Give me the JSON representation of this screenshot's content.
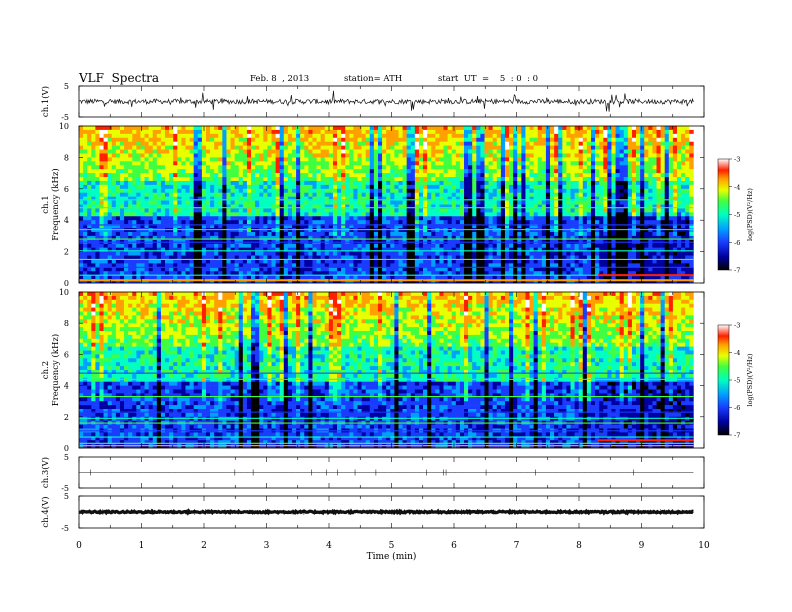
{
  "header": {
    "title": "VLF  Spectra",
    "date": "Feb. 8  , 2013",
    "station": "station= ATH",
    "start": "start  UT  =    5  : 0  : 0"
  },
  "colors": {
    "background": "#ffffff",
    "axis": "#000000",
    "trace": "#111111",
    "colormap": [
      "#000000",
      "#0000a0",
      "#1a3cff",
      "#00a0ff",
      "#00ffc0",
      "#40ff40",
      "#e8ff00",
      "#ffa000",
      "#ff2000",
      "#ffffff"
    ]
  },
  "chart_data": [
    {
      "type": "line",
      "id": "ch1",
      "ylabel": "ch.1(V)",
      "ylim": [
        -5,
        5
      ],
      "ytick_labels": [
        "5",
        "-5"
      ],
      "x_range": [
        0,
        9.83
      ],
      "baseline_y": 0.0,
      "noise_amplitude": 0.8
    },
    {
      "type": "heatmap",
      "id": "ch1_spec",
      "ylabel": "ch.1\nFrequency  (kHz)",
      "ylim": [
        0,
        10
      ],
      "ytick_labels": [
        "0",
        "2",
        "4",
        "6",
        "8",
        "10"
      ],
      "xlim": [
        0,
        10
      ],
      "data_x_end": 9.83,
      "colorbar": {
        "label": "log(PSD)(V²/Hz)",
        "range": [
          -7,
          -3
        ],
        "tick_labels": [
          "-3",
          "-4",
          "-5",
          "-6",
          "-7"
        ]
      },
      "tones_khz": [
        0.2,
        0.5,
        1.0,
        1.5,
        2.05,
        2.6,
        2.8,
        3.4,
        3.7,
        4.8,
        5.3
      ],
      "change_at_min": 8.3
    },
    {
      "type": "heatmap",
      "id": "ch2_spec",
      "ylabel": "ch.2\nFrequency  (kHz)",
      "ylim": [
        0,
        10
      ],
      "ytick_labels": [
        "0",
        "2",
        "4",
        "6",
        "8",
        "10"
      ],
      "xlim": [
        0,
        10
      ],
      "data_x_end": 9.83,
      "colorbar": {
        "label": "log(PSD)(V²/Hz)",
        "range": [
          -7,
          -3
        ],
        "tick_labels": [
          "-3",
          "-4",
          "-5",
          "-6",
          "-7"
        ]
      },
      "tones_khz": [
        0.3,
        0.7,
        1.1,
        1.6,
        1.9,
        2.3,
        3.3,
        4.4,
        4.8
      ],
      "change_at_min": 8.3
    },
    {
      "type": "line",
      "id": "ch3",
      "ylabel": "ch.3(V)",
      "ylim": [
        -5,
        5
      ],
      "ytick_labels": [
        "5",
        "-5"
      ],
      "x_range": [
        0,
        9.83
      ],
      "baseline_y": 0.0,
      "noise_amplitude": 0.05
    },
    {
      "type": "line",
      "id": "ch4",
      "ylabel": "ch.4(V)",
      "ylim": [
        -5,
        5
      ],
      "ytick_labels": [
        "5",
        "-5"
      ],
      "x_range": [
        0,
        9.83
      ],
      "baseline_y": 0.0,
      "noise_amplitude": 0.25
    }
  ],
  "xaxis": {
    "label": "Time  (min)",
    "range": [
      0,
      10
    ],
    "tick_labels": [
      "0",
      "1",
      "2",
      "3",
      "4",
      "5",
      "6",
      "7",
      "8",
      "9",
      "10"
    ]
  }
}
